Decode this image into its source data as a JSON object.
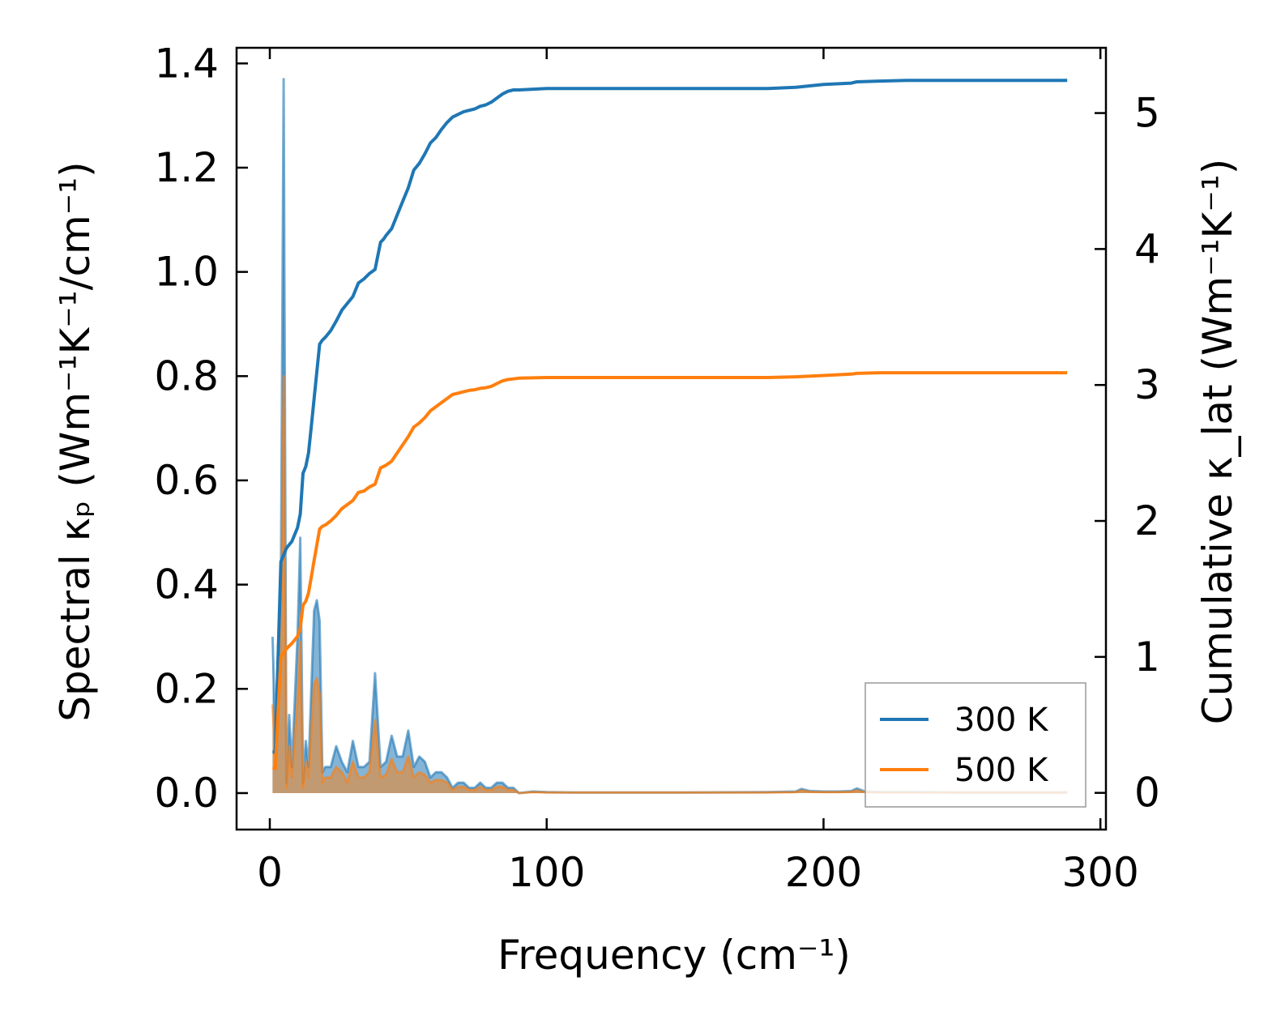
{
  "chart_data": {
    "type": "line",
    "xlabel": "Frequency (cm⁻¹)",
    "ylabel_left": "Spectral κₚ (Wm⁻¹K⁻¹/cm⁻¹)",
    "ylabel_right": "Cumulative κ_lat (Wm⁻¹K⁻¹)",
    "xlim": [
      -12,
      302
    ],
    "ylim_left": [
      -0.07,
      1.43
    ],
    "ylim_right": [
      -0.27,
      5.48
    ],
    "x_ticks": [
      0,
      100,
      200,
      300
    ],
    "x_tick_labels": [
      "0",
      "100",
      "200",
      "300"
    ],
    "y_left_ticks": [
      0.0,
      0.2,
      0.4,
      0.6,
      0.8,
      1.0,
      1.2,
      1.4
    ],
    "y_left_tick_labels": [
      "0.0",
      "0.2",
      "0.4",
      "0.6",
      "0.8",
      "1.0",
      "1.2",
      "1.4"
    ],
    "y_right_ticks": [
      0,
      1,
      2,
      3,
      4,
      5
    ],
    "y_right_tick_labels": [
      "0",
      "1",
      "2",
      "3",
      "4",
      "5"
    ],
    "legend": {
      "position": "lower-right",
      "entries": [
        "300 K",
        "500 K"
      ]
    },
    "series": [
      {
        "name": "300 K",
        "color": "#1f77b4",
        "spectral": {
          "x": [
            1,
            2,
            3,
            4,
            5,
            6,
            7,
            8,
            10,
            11,
            12,
            13,
            14,
            16,
            17,
            18,
            19,
            20,
            22,
            24,
            26,
            28,
            30,
            32,
            34,
            36,
            38,
            40,
            42,
            44,
            46,
            48,
            50,
            52,
            54,
            56,
            58,
            60,
            62,
            64,
            66,
            68,
            70,
            72,
            74,
            76,
            78,
            80,
            82,
            84,
            86,
            88,
            90,
            95,
            100,
            110,
            120,
            150,
            180,
            190,
            192,
            195,
            200,
            205,
            210,
            212,
            215,
            220,
            230,
            250,
            288
          ],
          "y": [
            0.3,
            0.12,
            0.28,
            0.4,
            1.37,
            0.02,
            0.15,
            0.05,
            0.3,
            0.49,
            0.02,
            0.1,
            0.05,
            0.35,
            0.37,
            0.33,
            0.04,
            0.05,
            0.05,
            0.09,
            0.06,
            0.04,
            0.1,
            0.05,
            0.05,
            0.06,
            0.23,
            0.05,
            0.06,
            0.11,
            0.07,
            0.07,
            0.12,
            0.05,
            0.07,
            0.06,
            0.03,
            0.04,
            0.04,
            0.03,
            0.01,
            0.02,
            0.02,
            0.01,
            0.01,
            0.02,
            0.01,
            0.01,
            0.02,
            0.02,
            0.01,
            0.01,
            0.0,
            0.003,
            0.002,
            0.001,
            0.001,
            0.001,
            0.002,
            0.003,
            0.008,
            0.004,
            0.003,
            0.003,
            0.004,
            0.009,
            0.003,
            0.002,
            0.002,
            0.001,
            0.001
          ]
        },
        "cumulative": {
          "x": [
            1,
            2,
            4,
            5,
            6,
            8,
            10,
            11,
            12,
            13,
            14,
            15,
            16,
            18,
            19,
            20,
            22,
            24,
            26,
            28,
            30,
            32,
            34,
            36,
            38,
            40,
            41,
            42,
            44,
            46,
            48,
            50,
            52,
            54,
            56,
            58,
            60,
            62,
            64,
            66,
            68,
            70,
            72,
            74,
            76,
            78,
            80,
            82,
            84,
            86,
            88,
            90,
            100,
            120,
            150,
            180,
            190,
            200,
            210,
            212,
            220,
            230,
            250,
            288
          ],
          "y": [
            0.3,
            0.3,
            1.7,
            1.75,
            1.8,
            1.85,
            1.95,
            2.05,
            2.35,
            2.4,
            2.5,
            2.7,
            2.9,
            3.3,
            3.33,
            3.35,
            3.4,
            3.47,
            3.55,
            3.6,
            3.65,
            3.75,
            3.78,
            3.82,
            3.85,
            4.05,
            4.07,
            4.1,
            4.15,
            4.25,
            4.35,
            4.45,
            4.58,
            4.63,
            4.7,
            4.78,
            4.82,
            4.88,
            4.93,
            4.97,
            4.99,
            5.01,
            5.02,
            5.03,
            5.05,
            5.06,
            5.08,
            5.11,
            5.14,
            5.16,
            5.17,
            5.17,
            5.18,
            5.18,
            5.18,
            5.18,
            5.19,
            5.21,
            5.22,
            5.23,
            5.235,
            5.24,
            5.24,
            5.24
          ]
        }
      },
      {
        "name": "500 K",
        "color": "#ff7f0e",
        "spectral": {
          "x": [
            1,
            2,
            3,
            4,
            5,
            6,
            7,
            8,
            10,
            11,
            12,
            13,
            14,
            16,
            17,
            18,
            19,
            20,
            22,
            24,
            26,
            28,
            30,
            32,
            34,
            36,
            38,
            40,
            42,
            44,
            46,
            48,
            50,
            52,
            54,
            56,
            58,
            60,
            62,
            64,
            66,
            68,
            70,
            72,
            74,
            76,
            78,
            80,
            82,
            84,
            86,
            88,
            90,
            95,
            100,
            110,
            120,
            150,
            180,
            190,
            192,
            195,
            200,
            205,
            210,
            212,
            215,
            220,
            230,
            250,
            288
          ],
          "y": [
            0.17,
            0.07,
            0.16,
            0.24,
            0.8,
            0.01,
            0.09,
            0.03,
            0.18,
            0.29,
            0.01,
            0.06,
            0.03,
            0.21,
            0.22,
            0.19,
            0.02,
            0.03,
            0.03,
            0.05,
            0.04,
            0.02,
            0.06,
            0.03,
            0.03,
            0.04,
            0.14,
            0.03,
            0.035,
            0.065,
            0.04,
            0.04,
            0.07,
            0.03,
            0.04,
            0.035,
            0.02,
            0.025,
            0.025,
            0.02,
            0.006,
            0.012,
            0.012,
            0.006,
            0.006,
            0.012,
            0.006,
            0.006,
            0.012,
            0.012,
            0.006,
            0.006,
            0.0,
            0.002,
            0.001,
            0.001,
            0.001,
            0.001,
            0.001,
            0.002,
            0.005,
            0.0025,
            0.002,
            0.002,
            0.0025,
            0.005,
            0.002,
            0.001,
            0.001,
            0.001,
            0.001
          ]
        },
        "cumulative": {
          "x": [
            1,
            2,
            4,
            5,
            6,
            8,
            10,
            11,
            12,
            13,
            14,
            15,
            16,
            18,
            19,
            20,
            22,
            24,
            26,
            28,
            30,
            32,
            34,
            36,
            38,
            40,
            41,
            42,
            44,
            46,
            48,
            50,
            52,
            54,
            56,
            58,
            60,
            62,
            64,
            66,
            68,
            70,
            72,
            74,
            76,
            78,
            80,
            82,
            84,
            86,
            88,
            90,
            100,
            120,
            150,
            180,
            190,
            200,
            210,
            212,
            220,
            230,
            250,
            288
          ],
          "y": [
            0.18,
            0.18,
            1.0,
            1.03,
            1.06,
            1.1,
            1.15,
            1.21,
            1.38,
            1.41,
            1.47,
            1.59,
            1.71,
            1.94,
            1.96,
            1.97,
            2.0,
            2.04,
            2.09,
            2.12,
            2.15,
            2.21,
            2.22,
            2.25,
            2.27,
            2.39,
            2.4,
            2.41,
            2.44,
            2.5,
            2.56,
            2.62,
            2.69,
            2.72,
            2.76,
            2.81,
            2.84,
            2.87,
            2.9,
            2.93,
            2.94,
            2.95,
            2.96,
            2.965,
            2.975,
            2.98,
            2.99,
            3.01,
            3.03,
            3.04,
            3.045,
            3.05,
            3.055,
            3.055,
            3.055,
            3.055,
            3.06,
            3.07,
            3.08,
            3.085,
            3.09,
            3.09,
            3.09,
            3.09
          ]
        }
      }
    ]
  }
}
